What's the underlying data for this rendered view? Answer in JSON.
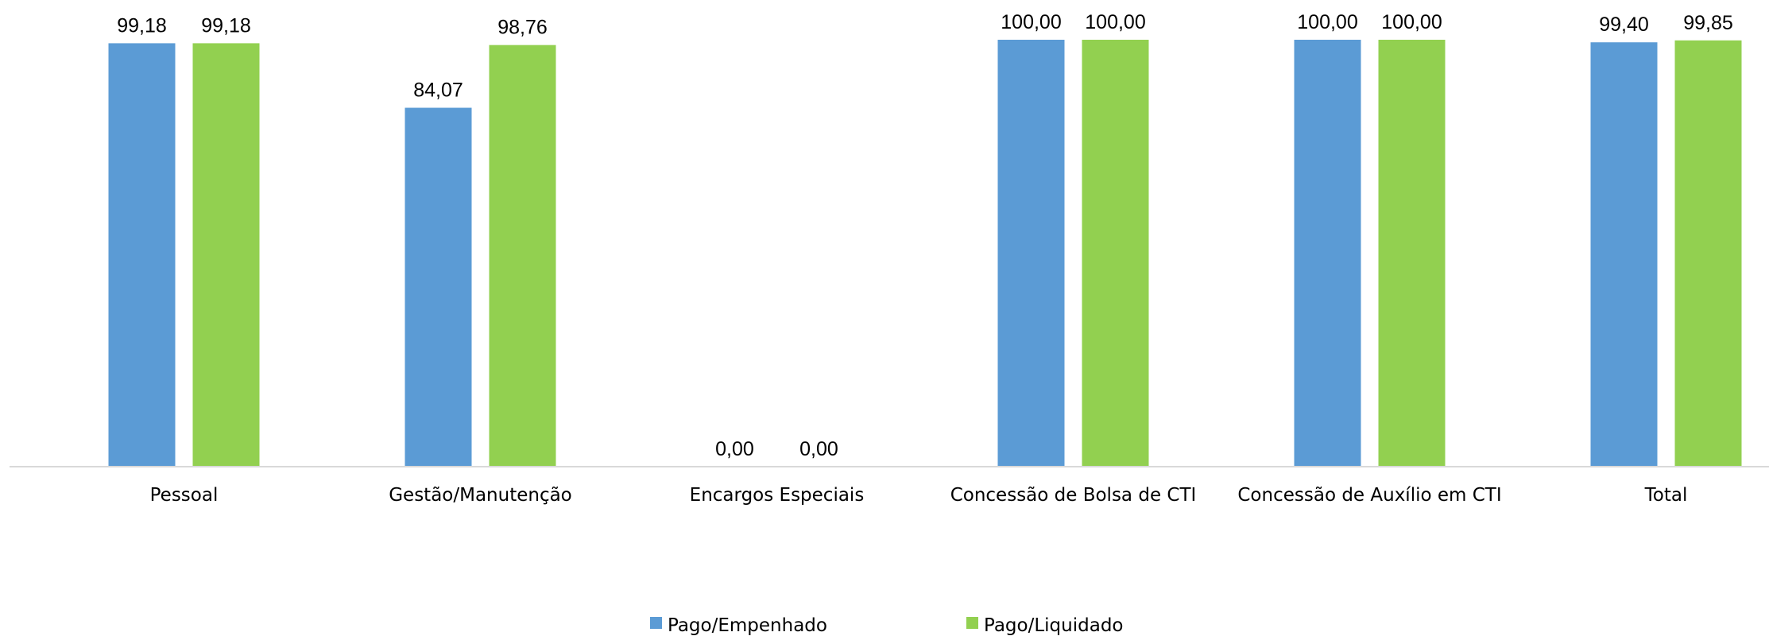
{
  "chart_data": {
    "type": "bar",
    "title": "",
    "xlabel": "",
    "ylabel": "",
    "ylim": [
      0,
      100
    ],
    "grid": false,
    "legend_position": "bottom",
    "categories": [
      "Pessoal",
      "Gestão/Manutenção",
      "Encargos Especiais",
      "Concessão de Bolsa de CTI",
      "Concessão de Auxílio em CTI",
      "Total"
    ],
    "series": [
      {
        "name": "Pago/Empenhado",
        "color": "#5B9BD5",
        "values": [
          99.18,
          84.07,
          0.0,
          100.0,
          100.0,
          99.4
        ],
        "labels": [
          "99,18",
          "84,07",
          "0,00",
          "100,00",
          "100,00",
          "99,40"
        ]
      },
      {
        "name": "Pago/Liquidado",
        "color": "#92D050",
        "values": [
          99.18,
          98.76,
          0.0,
          100.0,
          100.0,
          99.85
        ],
        "labels": [
          "99,18",
          "98,76",
          "0,00",
          "100,00",
          "100,00",
          "99,85"
        ]
      }
    ]
  }
}
